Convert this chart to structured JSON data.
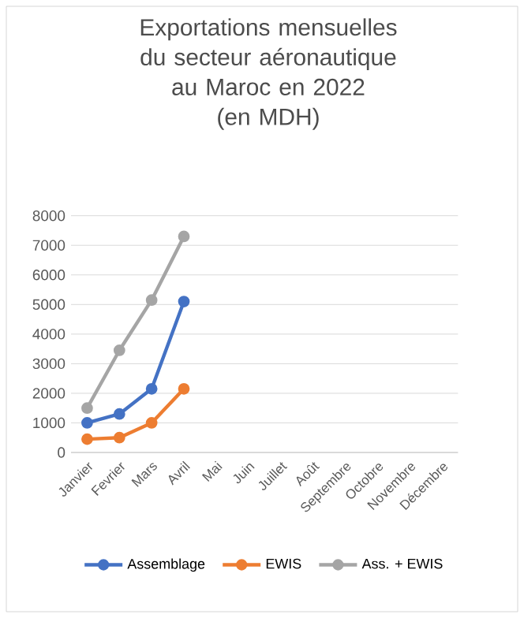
{
  "chart_data": {
    "type": "line",
    "title": "Exportations mensuelles du secteur aéronautique au Maroc en 2022",
    "subtitle": "(en MDH)",
    "categories": [
      "Janvier",
      "Fevrier",
      "Mars",
      "Avril",
      "Mai",
      "Juin",
      "Juillet",
      "Août",
      "Septembre",
      "Octobre",
      "Novembre",
      "Décembre"
    ],
    "series": [
      {
        "name": "Assemblage",
        "color": "#4472c4",
        "values": [
          1000,
          1300,
          2150,
          5100,
          null,
          null,
          null,
          null,
          null,
          null,
          null,
          null
        ]
      },
      {
        "name": "EWIS",
        "color": "#ed7d31",
        "values": [
          450,
          500,
          1000,
          2150,
          null,
          null,
          null,
          null,
          null,
          null,
          null,
          null
        ]
      },
      {
        "name": "Ass. + EWIS",
        "color": "#a5a5a5",
        "values": [
          1500,
          3450,
          5150,
          7300,
          null,
          null,
          null,
          null,
          null,
          null,
          null,
          null
        ]
      }
    ],
    "ylim": [
      0,
      8000
    ],
    "yticks": [
      0,
      1000,
      2000,
      3000,
      4000,
      5000,
      6000,
      7000,
      8000
    ],
    "grid": "y",
    "legend": "bottom",
    "marker": "circle",
    "line_style": "solid"
  }
}
